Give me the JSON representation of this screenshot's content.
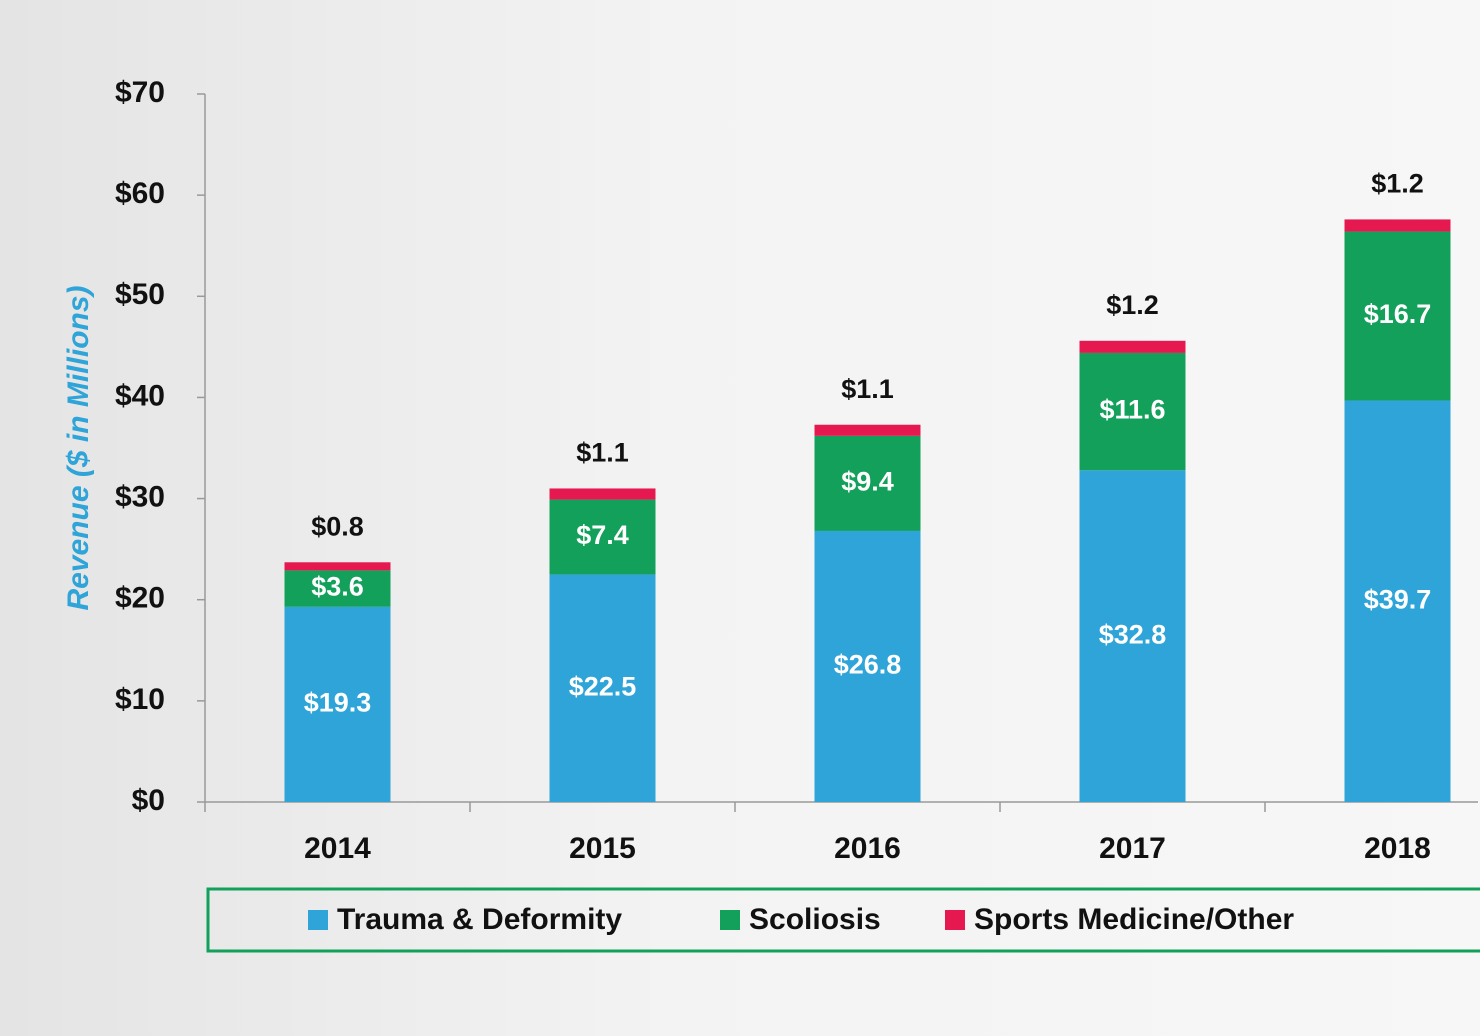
{
  "chart_data": {
    "type": "stacked-bar",
    "y_label": "Revenue  ($ in Millions)",
    "categories": [
      "2014",
      "2015",
      "2016",
      "2017",
      "2018"
    ],
    "series": [
      {
        "name": "Trauma & Deformity",
        "color": "#2ea4d8",
        "values": [
          19.3,
          22.5,
          26.8,
          32.8,
          39.7
        ],
        "value_labels": [
          "$19.3",
          "$22.5",
          "$26.8",
          "$32.8",
          "$39.7"
        ]
      },
      {
        "name": "Scoliosis",
        "color": "#12a05a",
        "values": [
          3.6,
          7.4,
          9.4,
          11.6,
          16.7
        ],
        "value_labels": [
          "$3.6",
          "$7.4",
          "$9.4",
          "$11.6",
          "$16.7"
        ]
      },
      {
        "name": "Sports Medicine/Other",
        "color": "#e5194f",
        "values": [
          0.8,
          1.1,
          1.1,
          1.2,
          1.2
        ],
        "value_labels": [
          "$0.8",
          "$1.1",
          "$1.1",
          "$1.2",
          "$1.2"
        ]
      }
    ],
    "ylim": [
      0,
      70
    ],
    "yticks": [
      {
        "value": 0,
        "label": "$0"
      },
      {
        "value": 10,
        "label": "$10"
      },
      {
        "value": 20,
        "label": "$20"
      },
      {
        "value": 30,
        "label": "$30"
      },
      {
        "value": 40,
        "label": "$40"
      },
      {
        "value": 50,
        "label": "$50"
      },
      {
        "value": 60,
        "label": "$60"
      },
      {
        "value": 70,
        "label": "$70"
      }
    ],
    "legend": "bottom"
  }
}
